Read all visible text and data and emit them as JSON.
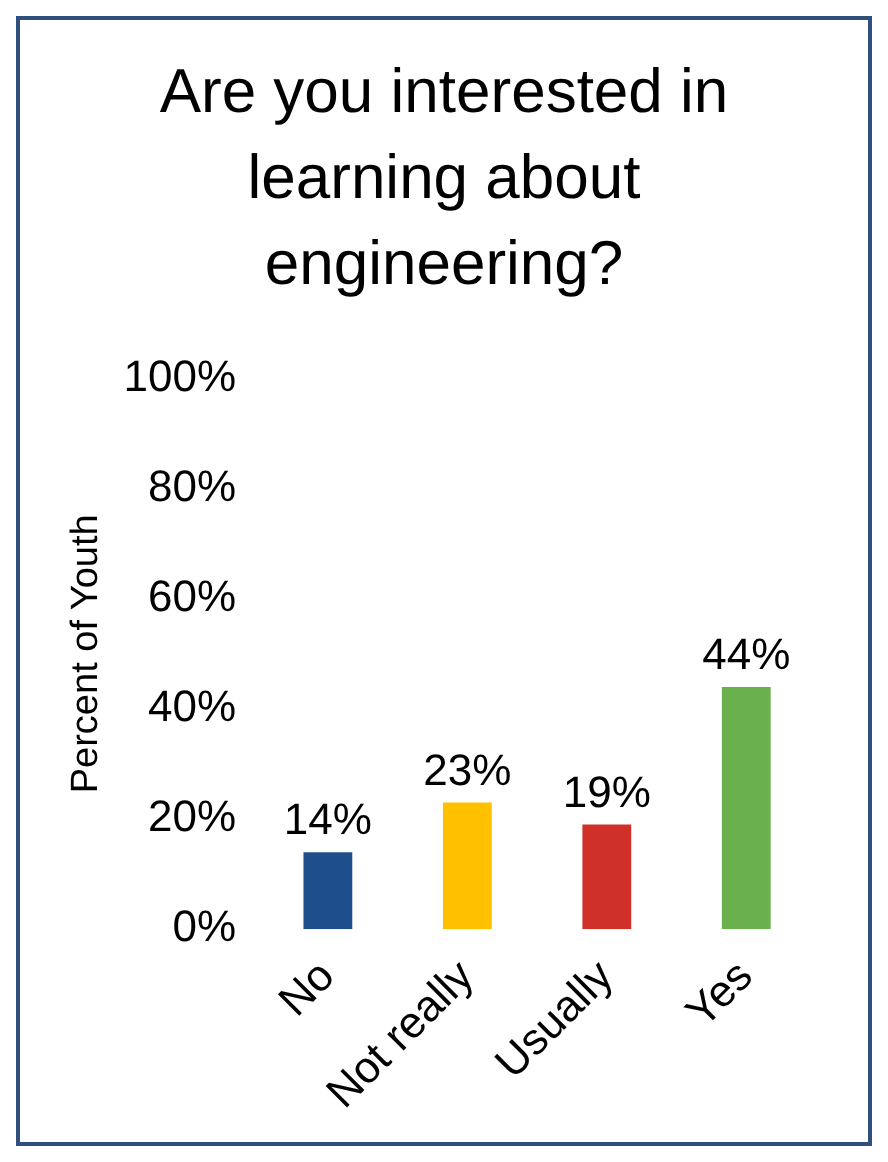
{
  "chart_data": {
    "type": "bar",
    "title": "Are you interested in learning about engineering?",
    "ylabel": "Percent of Youth",
    "categories": [
      "No",
      "Not really",
      "Usually",
      "Yes"
    ],
    "values": [
      14,
      23,
      19,
      44
    ],
    "colors": [
      "#1f4e8c",
      "#ffc000",
      "#d0302a",
      "#6ab04c"
    ],
    "value_labels": [
      "14%",
      "23%",
      "19%",
      "44%"
    ],
    "ylim": [
      0,
      100
    ],
    "yticks": [
      {
        "value": 0,
        "label": "0%"
      },
      {
        "value": 20,
        "label": "20%"
      },
      {
        "value": 40,
        "label": "40%"
      },
      {
        "value": 60,
        "label": "60%"
      },
      {
        "value": 80,
        "label": "80%"
      },
      {
        "value": 100,
        "label": "100%"
      }
    ],
    "grid": false,
    "legend": false
  }
}
